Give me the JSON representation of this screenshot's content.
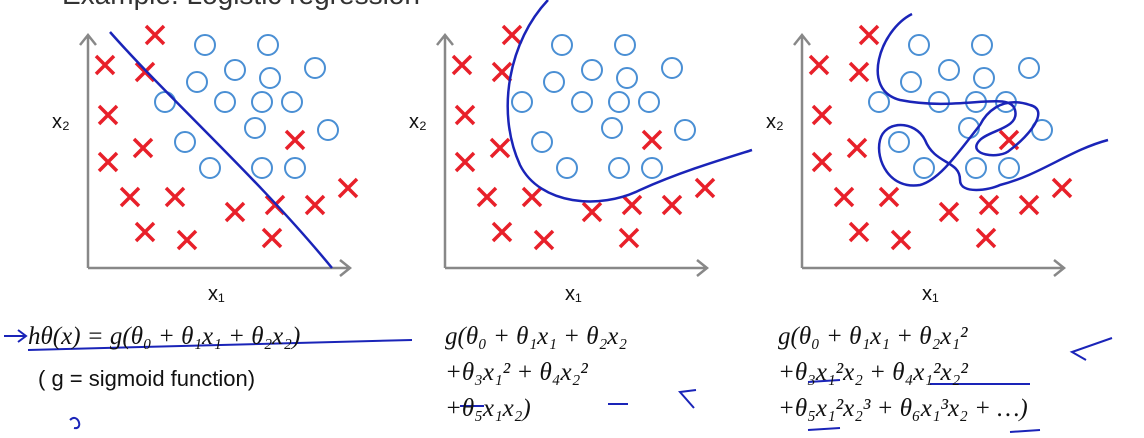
{
  "header": {
    "title": "Example: Logistic regression"
  },
  "panels": [
    {
      "y_label": "x₂",
      "x_label": "x₁",
      "formula": [
        "hθ(x) = g(θ₀ + θ₁x₁ + θ₂x₂)"
      ],
      "note": "( g = sigmoid function)"
    },
    {
      "y_label": "x₂",
      "x_label": "x₁",
      "formula": [
        "g(θ₀ + θ₁x₁ + θ₂x₂",
        "+θ₃x₁² + θ₄x₂²",
        "+θ₅x₁x₂)"
      ]
    },
    {
      "y_label": "x₂",
      "x_label": "x₁",
      "formula": [
        "g(θ₀ + θ₁x₁ + θ₂x₁²",
        "+θ₃x₁²x₂ + θ₄x₁²x₂²",
        "+θ₅x₁²x₂³ + θ₆x₁³x₂ + …)"
      ]
    }
  ]
}
